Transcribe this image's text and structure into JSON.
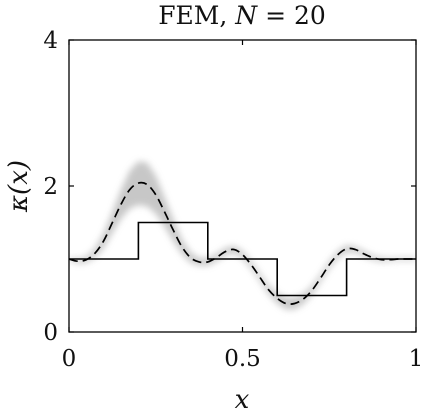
{
  "chart_data": {
    "type": "line",
    "title": "FEM, N = 20",
    "title_parts": {
      "prefix": "FEM, ",
      "var": "N",
      "suffix": " = 20"
    },
    "xlabel": "x",
    "ylabel": "κ(x)",
    "xlim": [
      0,
      1
    ],
    "ylim": [
      0,
      4
    ],
    "xticks": [
      0,
      0.5,
      1
    ],
    "xtick_labels": [
      "0",
      "0.5",
      "1"
    ],
    "yticks": [
      0,
      2,
      4
    ],
    "ytick_labels": [
      "0",
      "2",
      "4"
    ],
    "grid": false,
    "series": [
      {
        "style": "step",
        "color": "#000000",
        "x": [
          0,
          0.2,
          0.2,
          0.4,
          0.4,
          0.6,
          0.6,
          0.8,
          0.8,
          1.0
        ],
        "y": [
          1.0,
          1.0,
          1.5,
          1.5,
          1.0,
          1.0,
          0.5,
          0.5,
          1.0,
          1.0
        ]
      },
      {
        "style": "dashed",
        "color": "#000000",
        "band_color": "#9a9a9a",
        "x": [
          0,
          0.025,
          0.05,
          0.075,
          0.1,
          0.125,
          0.15,
          0.175,
          0.2,
          0.225,
          0.25,
          0.275,
          0.3,
          0.325,
          0.35,
          0.375,
          0.4,
          0.425,
          0.45,
          0.475,
          0.5,
          0.525,
          0.55,
          0.575,
          0.6,
          0.625,
          0.65,
          0.675,
          0.7,
          0.725,
          0.75,
          0.775,
          0.8,
          0.825,
          0.85,
          0.875,
          0.9,
          0.925,
          0.95,
          0.975,
          1.0
        ],
        "y": [
          1.0,
          0.97,
          0.99,
          1.08,
          1.25,
          1.5,
          1.75,
          1.95,
          2.04,
          2.02,
          1.88,
          1.65,
          1.4,
          1.17,
          1.02,
          0.96,
          0.96,
          1.02,
          1.1,
          1.13,
          1.06,
          0.92,
          0.75,
          0.58,
          0.46,
          0.39,
          0.39,
          0.45,
          0.57,
          0.74,
          0.92,
          1.06,
          1.14,
          1.13,
          1.07,
          1.02,
          0.99,
          0.99,
          1.0,
          1.0,
          1.0
        ],
        "spread": [
          0.02,
          0.03,
          0.04,
          0.06,
          0.1,
          0.14,
          0.2,
          0.26,
          0.3,
          0.3,
          0.26,
          0.2,
          0.15,
          0.1,
          0.07,
          0.05,
          0.05,
          0.05,
          0.05,
          0.05,
          0.05,
          0.05,
          0.05,
          0.06,
          0.07,
          0.08,
          0.08,
          0.07,
          0.06,
          0.05,
          0.05,
          0.05,
          0.05,
          0.04,
          0.04,
          0.03,
          0.03,
          0.02,
          0.02,
          0.02,
          0.02
        ]
      }
    ]
  }
}
